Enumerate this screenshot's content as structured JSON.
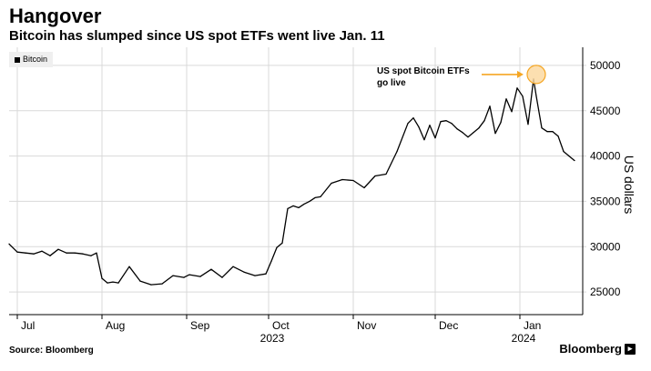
{
  "header": {
    "title": "Hangover",
    "subtitle": "Bitcoin has slumped since US spot ETFs went live Jan. 11"
  },
  "footer": {
    "source": "Source: Bloomberg",
    "brand": "Bloomberg"
  },
  "legend": {
    "label": "Bitcoin"
  },
  "annotation": {
    "text": "US spot Bitcoin ETFs go live"
  },
  "colors": {
    "series": "#000000",
    "grid": "#d9d9d9",
    "annotation": "#f5a623",
    "annotation_fill": "#fbd9a2"
  },
  "chart_data": {
    "type": "line",
    "title": "Hangover",
    "subtitle": "Bitcoin has slumped since US spot ETFs went live Jan. 11",
    "ylabel": "US dollars",
    "xlabel": "",
    "ylim": [
      22500,
      52000
    ],
    "yticks": [
      25000,
      30000,
      35000,
      40000,
      45000,
      50000
    ],
    "ytick_labels": [
      "25000",
      "30000",
      "35000",
      "40000",
      "45000",
      "50000"
    ],
    "xlim": [
      0,
      210
    ],
    "xticks": [
      {
        "x": 3,
        "label": "Jul"
      },
      {
        "x": 34,
        "label": "Aug"
      },
      {
        "x": 65,
        "label": "Sep"
      },
      {
        "x": 95,
        "label": "Oct"
      },
      {
        "x": 126,
        "label": "Nov"
      },
      {
        "x": 156,
        "label": "Dec"
      },
      {
        "x": 187,
        "label": "Jan"
      }
    ],
    "year_labels": [
      {
        "x": 95,
        "label": "2023"
      },
      {
        "x": 187,
        "label": "2024"
      }
    ],
    "grid": true,
    "legend_position": "top-left",
    "annotation_point": {
      "x": 193,
      "y": 49000,
      "label": "US spot Bitcoin ETFs go live"
    },
    "series": [
      {
        "name": "Bitcoin",
        "x": [
          0,
          3,
          6,
          9,
          12,
          15,
          18,
          21,
          24,
          27,
          30,
          32,
          34,
          36,
          38,
          40,
          44,
          48,
          52,
          56,
          60,
          64,
          66,
          70,
          74,
          78,
          82,
          86,
          90,
          94,
          96,
          98,
          100,
          102,
          104,
          106,
          108,
          110,
          112,
          114,
          118,
          122,
          126,
          130,
          134,
          138,
          142,
          146,
          148,
          150,
          152,
          154,
          156,
          158,
          160,
          162,
          164,
          166,
          168,
          170,
          172,
          174,
          176,
          178,
          180,
          182,
          184,
          186,
          188,
          190,
          192,
          193,
          195,
          197,
          199,
          201,
          203,
          205,
          207
        ],
        "y": [
          30300,
          29400,
          29300,
          29200,
          29500,
          29000,
          29700,
          29300,
          29300,
          29200,
          29000,
          29300,
          26500,
          26000,
          26100,
          26000,
          27800,
          26200,
          25800,
          25900,
          26800,
          26600,
          26900,
          26700,
          27500,
          26600,
          27800,
          27200,
          26800,
          27000,
          28400,
          29900,
          30400,
          34200,
          34500,
          34300,
          34700,
          35000,
          35400,
          35500,
          37000,
          37400,
          37300,
          36500,
          37800,
          38000,
          40500,
          43600,
          44200,
          43200,
          41800,
          43400,
          42000,
          43800,
          43900,
          43600,
          43000,
          42600,
          42100,
          42600,
          43100,
          43900,
          45500,
          42500,
          43700,
          46300,
          44900,
          47500,
          46600,
          43500,
          48500,
          46600,
          43100,
          42700,
          42700,
          42200,
          40500,
          40000,
          39500
        ]
      }
    ]
  }
}
